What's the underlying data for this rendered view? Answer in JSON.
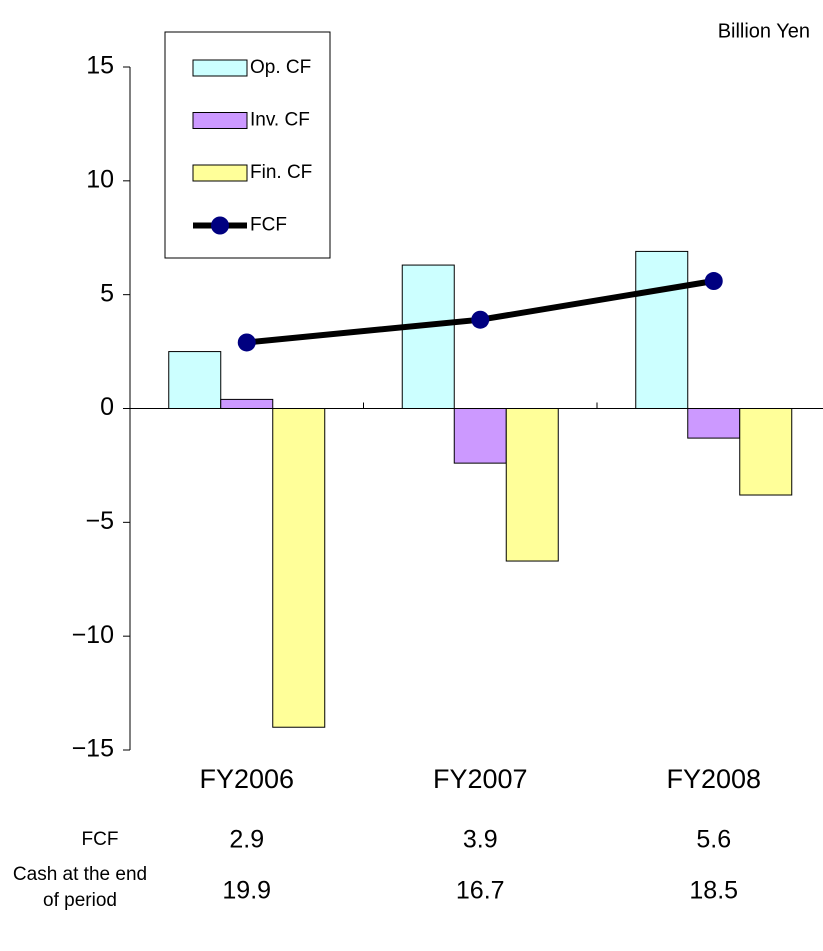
{
  "chart_data": {
    "type": "bar",
    "unit_label": "Billion Yen",
    "categories": [
      "FY2006",
      "FY2007",
      "FY2008"
    ],
    "series": [
      {
        "name": "Op. CF",
        "color": "#ccffff",
        "values": [
          2.5,
          6.3,
          6.9
        ]
      },
      {
        "name": "Inv. CF",
        "color": "#cc99ff",
        "values": [
          0.4,
          -2.4,
          -1.3
        ]
      },
      {
        "name": "Fin. CF",
        "color": "#ffff99",
        "values": [
          -14.0,
          -6.7,
          -3.8
        ]
      },
      {
        "name": "FCF",
        "type": "line",
        "color": "#000000",
        "marker_color": "#000080",
        "values": [
          2.9,
          3.9,
          5.6
        ]
      }
    ],
    "ylim": [
      -15,
      15
    ],
    "yticks": [
      -15,
      -10,
      -5,
      0,
      5,
      10,
      15
    ],
    "grid": false,
    "legend": "upper left",
    "data_table": {
      "rows": [
        {
          "label": "FCF"
        },
        {
          "label": "Cash at the end of period",
          "values": [
            19.9,
            16.7,
            18.5
          ]
        }
      ]
    }
  }
}
